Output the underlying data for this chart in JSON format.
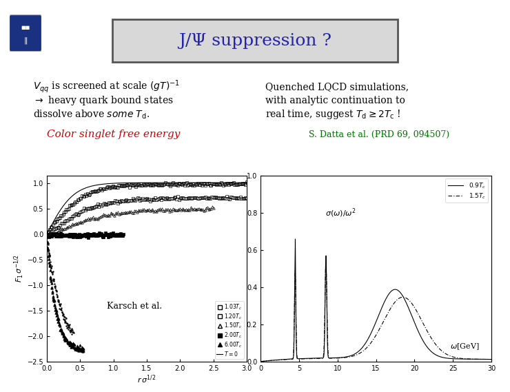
{
  "title": "J/Ψ suppression ?",
  "title_color": "#2222aa",
  "title_box_facecolor": "#d8d8d8",
  "title_box_edgecolor": "#555555",
  "bg_color": "#f0f0f0",
  "slide_bg": "#ffffff",
  "left_text_line1": "$V_{qq}$ is screened at scale $(gT)^{-1}$",
  "left_text_line2": "$\\rightarrow$ heavy quark bound states",
  "left_text_line3": "dissolve above $\\mathit{some}$ $T_\\mathrm{d}$.",
  "right_text_line1": "Quenched LQCD simulations,",
  "right_text_line2": "with analytic continuation to",
  "right_text_line3": "real time, suggest $T_\\mathrm{d} \\geq 2T_\\mathrm{c}$ !",
  "left_caption": "Color singlet free energy",
  "left_caption_color": "#cc0000",
  "right_caption": "S. Datta et al. (PRD 69, 094507)",
  "right_caption_color": "#007700",
  "karsch_label": "Karsch et al.",
  "left_plot_xlabel": "$r\\,\\sigma^{1/2}$",
  "left_plot_ylabel": "$F_1\\,\\sigma^{-1/2}$",
  "right_plot_ylabel_inside": "$\\sigma(\\omega)/\\omega^2$",
  "right_plot_xlabel_inside": "$\\omega$[GeV]",
  "font_size_body": 10,
  "font_size_title": 18,
  "font_size_caption": 11
}
